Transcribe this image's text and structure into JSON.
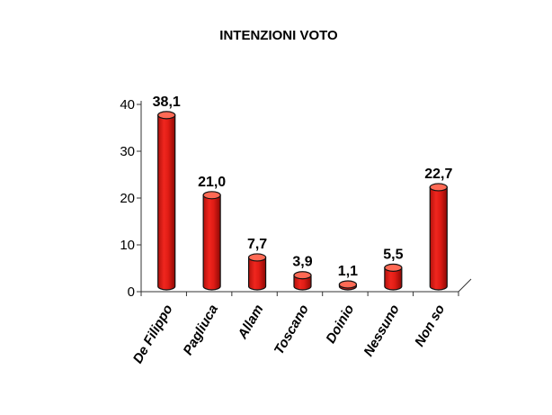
{
  "chart_data": {
    "type": "bar",
    "title": "INTENZIONI VOTO",
    "categories": [
      "De Filippo",
      "Pagliuca",
      "Allam",
      "Toscano",
      "Doinio",
      "Nessuno",
      "Non so"
    ],
    "values": [
      38.1,
      21.0,
      7.7,
      3.9,
      1.1,
      5.5,
      22.7
    ],
    "value_labels": [
      "38,1",
      "21,0",
      "7,7",
      "3,9",
      "1,1",
      "5,5",
      "22,7"
    ],
    "yticks": [
      "0",
      "10",
      "20",
      "30",
      "40"
    ],
    "ylim": [
      0,
      40
    ],
    "xlabel": "",
    "ylabel": "",
    "grid": false,
    "colors": {
      "bar": "#e8211b",
      "bar_dark": "#a80c08",
      "bar_light": "#ff6a55",
      "outline": "#111111"
    }
  }
}
